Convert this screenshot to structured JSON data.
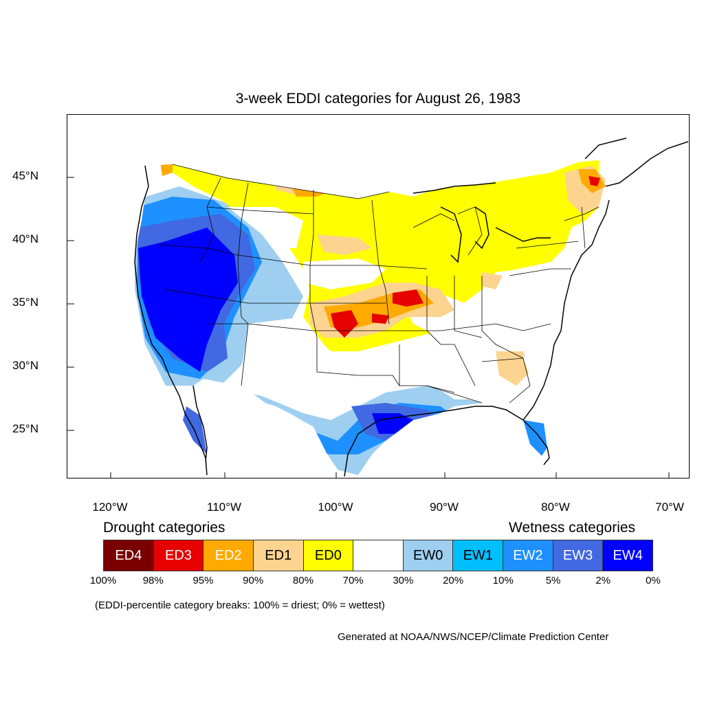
{
  "title": "3-week EDDI categories for August 26, 1983",
  "lat_labels": [
    "45°N",
    "40°N",
    "35°N",
    "30°N",
    "25°N"
  ],
  "lon_labels": [
    "120°W",
    "110°W",
    "100°W",
    "90°W",
    "80°W",
    "70°W"
  ],
  "legend": {
    "drought_heading": "Drought categories",
    "wetness_heading": "Wetness categories",
    "categories": [
      {
        "label": "ED4",
        "color": "#7a0000",
        "text_color": "#ffffff"
      },
      {
        "label": "ED3",
        "color": "#e60000",
        "text_color": "#ffffff"
      },
      {
        "label": "ED2",
        "color": "#ffaa00",
        "text_color": "#ffffff"
      },
      {
        "label": "ED1",
        "color": "#fcd38f",
        "text_color": "#000000"
      },
      {
        "label": "ED0",
        "color": "#ffff00",
        "text_color": "#000000"
      },
      {
        "label": "",
        "color": "#ffffff",
        "text_color": "#000000"
      },
      {
        "label": "EW0",
        "color": "#9ecff0",
        "text_color": "#000000"
      },
      {
        "label": "EW1",
        "color": "#00bfff",
        "text_color": "#000000"
      },
      {
        "label": "EW2",
        "color": "#1e90ff",
        "text_color": "#ffffff"
      },
      {
        "label": "EW3",
        "color": "#4169e1",
        "text_color": "#ffffff"
      },
      {
        "label": "EW4",
        "color": "#0000ff",
        "text_color": "#ffffff"
      }
    ],
    "breaks": [
      "100%",
      "98%",
      "95%",
      "90%",
      "80%",
      "70%",
      "30%",
      "20%",
      "10%",
      "5%",
      "2%",
      "0%"
    ]
  },
  "note": "(EDDI-percentile category breaks: 100% = driest; 0% = wettest)",
  "credit": "Generated at NOAA/NWS/NCEP/Climate Prediction Center"
}
